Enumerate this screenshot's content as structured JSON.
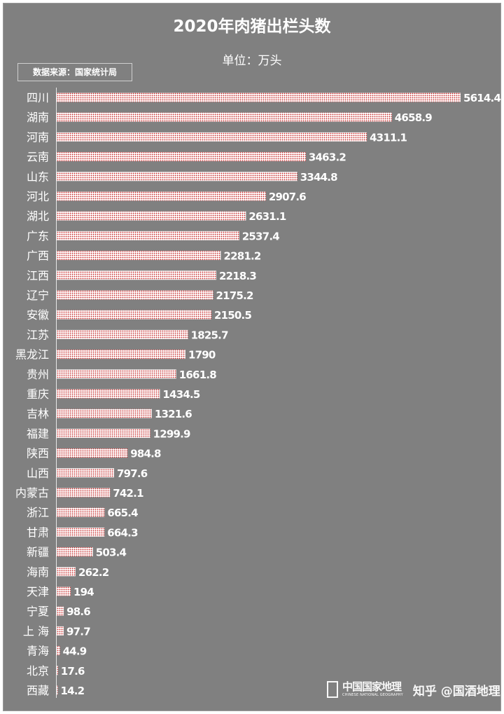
{
  "watermark": {
    "brand_cn": "中国国家地理",
    "brand_en": "CHINESE NATIONAL GEOGRAPHY",
    "handle": "知乎 @国酒地理"
  },
  "chart_data": {
    "type": "bar",
    "orientation": "horizontal",
    "title": "2020年肉猪出栏头数",
    "subtitle": "单位：万头",
    "source": "数据来源：国家统计局",
    "categories": [
      "四川",
      "湖南",
      "河南",
      "云南",
      "山东",
      "河北",
      "湖北",
      "广东",
      "广西",
      "江西",
      "辽宁",
      "安徽",
      "江苏",
      "黑龙江",
      "贵州",
      "重庆",
      "吉林",
      "福建",
      "陕西",
      "山西",
      "内蒙古",
      "浙江",
      "甘肃",
      "新疆",
      "海南",
      "天津",
      "宁夏",
      "上 海",
      "青海",
      "北京",
      "西藏"
    ],
    "values": [
      5614.4,
      4658.9,
      4311.1,
      3463.2,
      3344.8,
      2907.6,
      2631.1,
      2537.4,
      2281.2,
      2218.3,
      2175.2,
      2150.5,
      1825.7,
      1790,
      1661.8,
      1434.5,
      1321.6,
      1299.9,
      984.8,
      797.6,
      742.1,
      665.4,
      664.3,
      503.4,
      262.2,
      194,
      98.6,
      97.7,
      44.9,
      17.6,
      14.2
    ],
    "value_labels": [
      "5614.4",
      "4658.9",
      "4311.1",
      "3463.2",
      "3344.8",
      "2907.6",
      "2631.1",
      "2537.4",
      "2281.2",
      "2218.3",
      "2175.2",
      "2150.5",
      "1825.7",
      "1790",
      "1661.8",
      "1434.5",
      "1321.6",
      "1299.9",
      "984.8",
      "797.6",
      "742.1",
      "665.4",
      "664.3",
      "503.4",
      "262.2",
      "194",
      "98.6",
      "97.7",
      "44.9",
      "17.6",
      "14.2"
    ],
    "xlim": [
      0,
      5614.4
    ],
    "grid": false,
    "legend": "none",
    "colors": {
      "background": "#808080",
      "bar_fill": "#ffffff",
      "bar_pattern": "#c62828",
      "text": "#ffffff"
    }
  }
}
